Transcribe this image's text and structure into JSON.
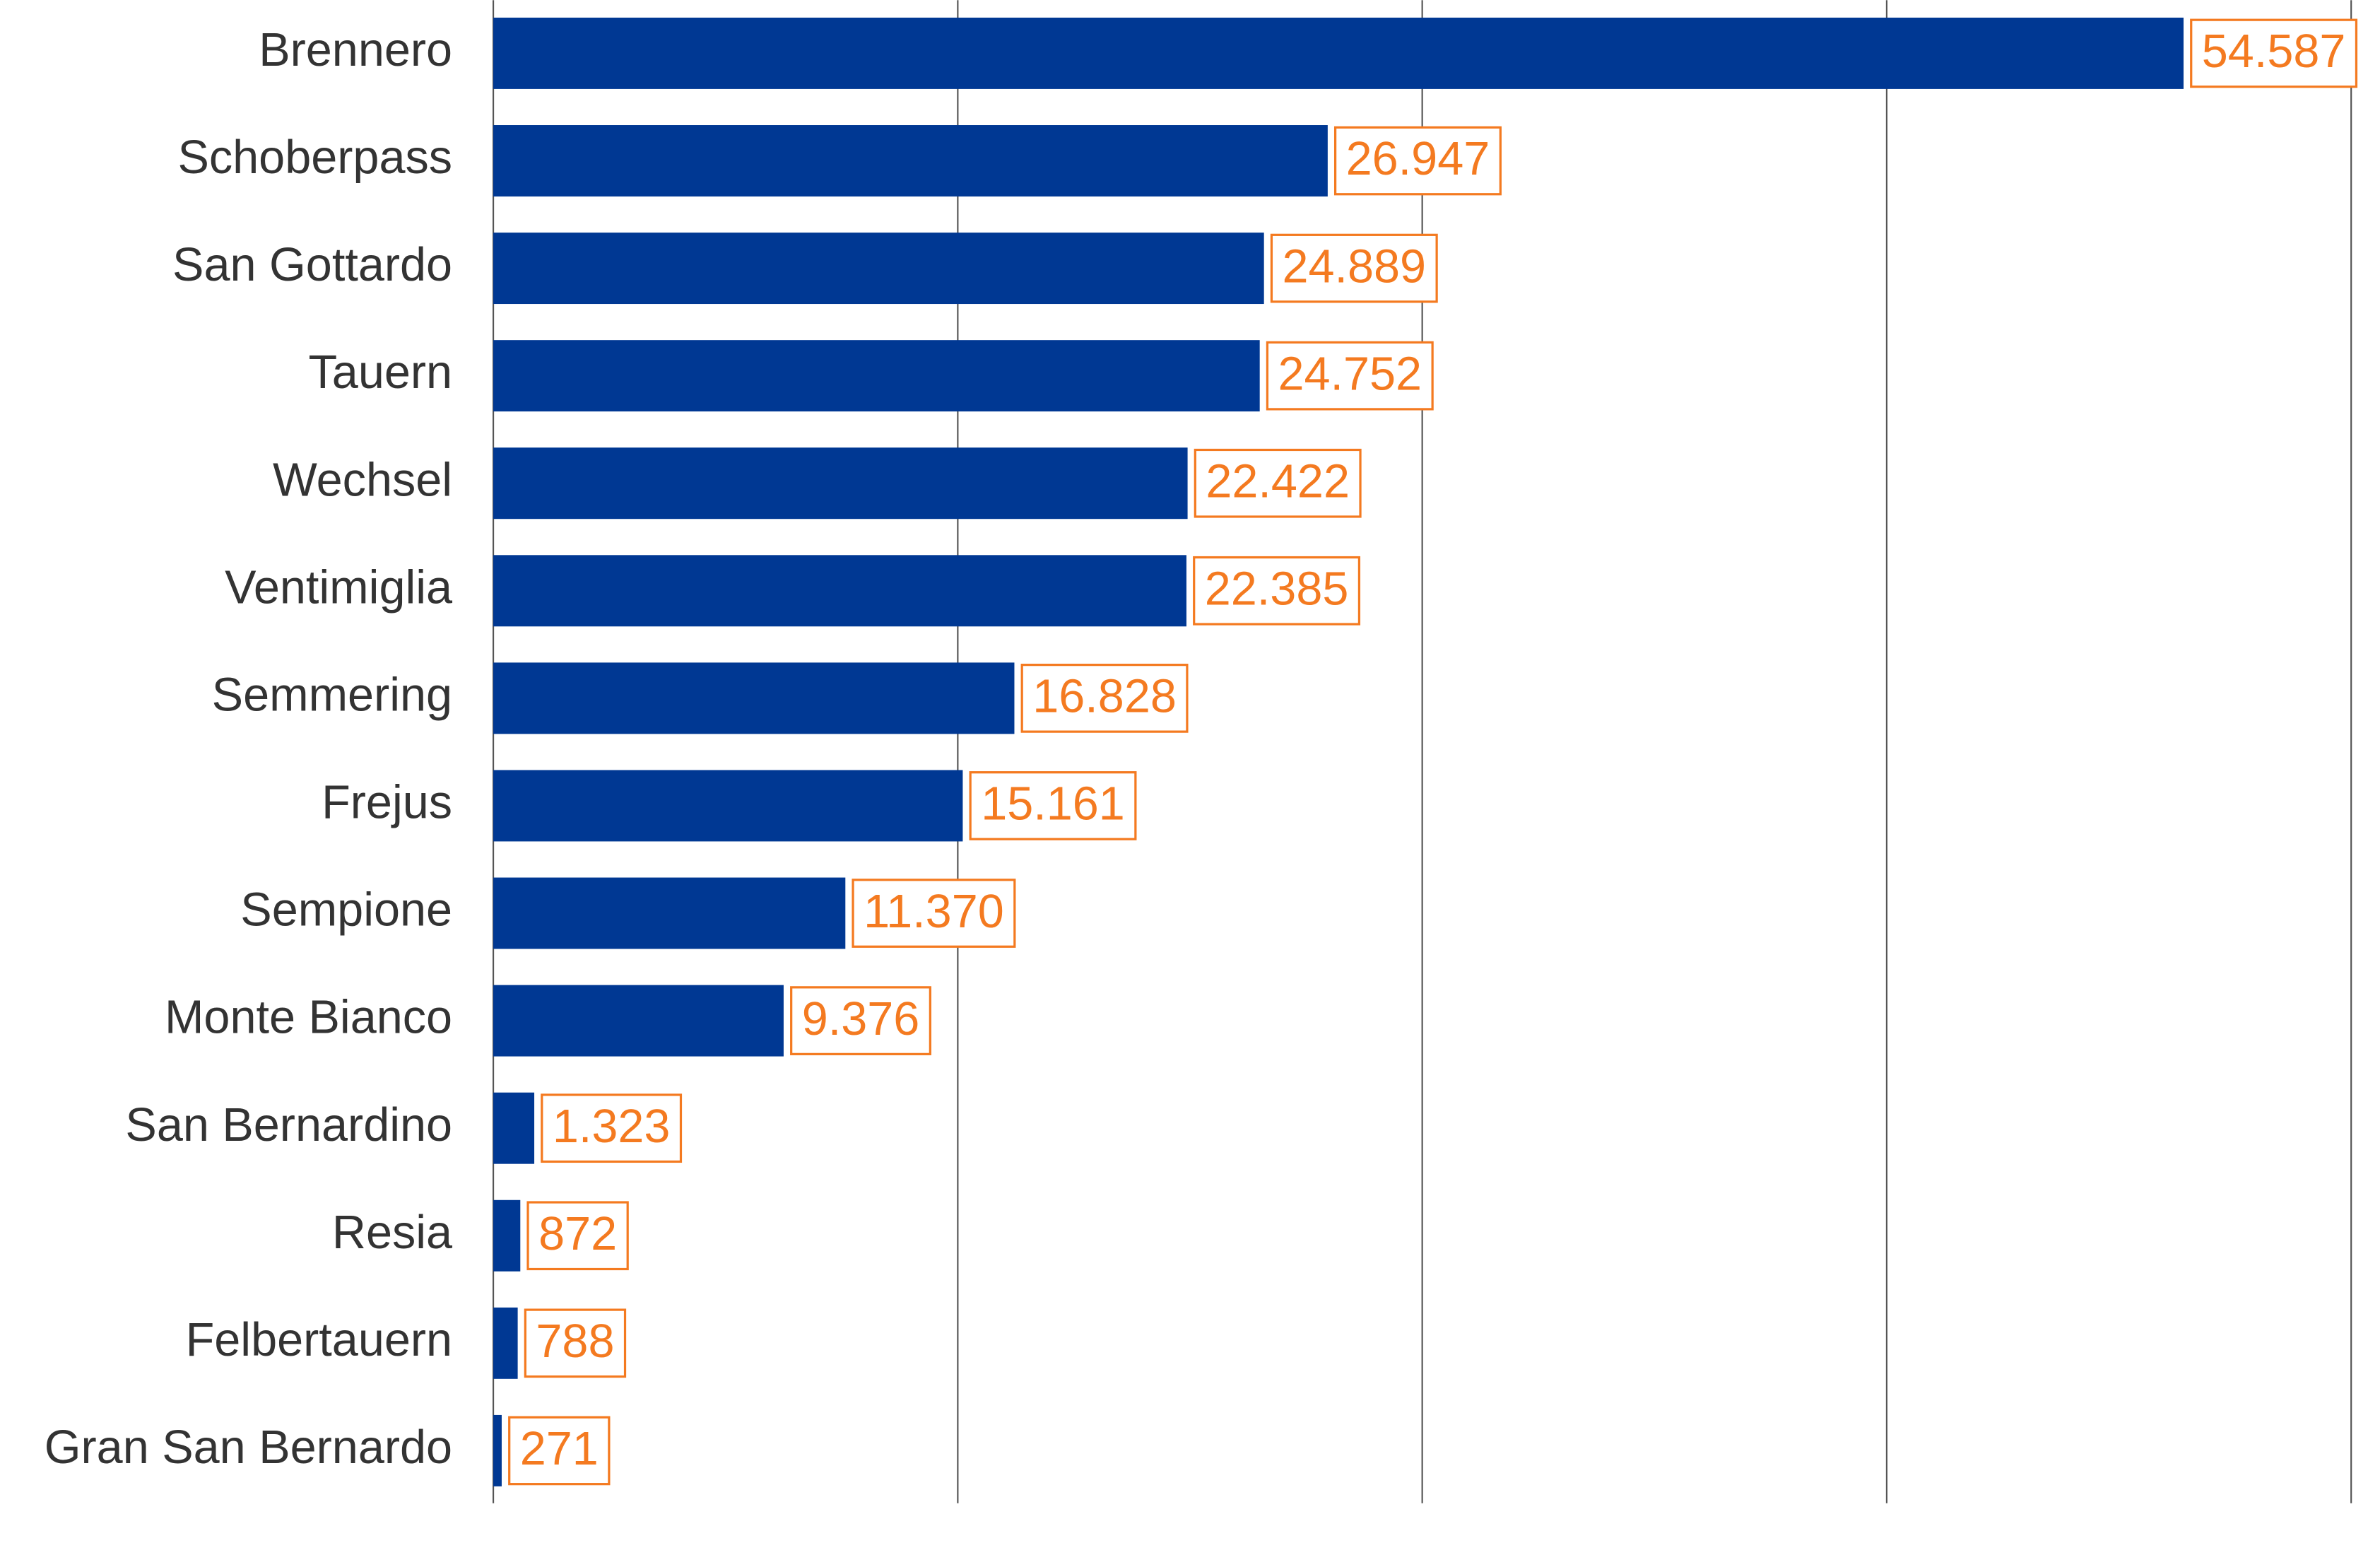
{
  "chart_data": {
    "type": "bar",
    "orientation": "horizontal",
    "categories": [
      "Brennero",
      "Schoberpass",
      "San Gottardo",
      "Tauern",
      "Wechsel",
      "Ventimiglia",
      "Semmering",
      "Frejus",
      "Sempione",
      "Monte Bianco",
      "San Bernardino",
      "Resia",
      "Felbertauern",
      "Gran San Bernardo"
    ],
    "values": [
      54587,
      26947,
      24889,
      24752,
      22422,
      22385,
      16828,
      15161,
      11370,
      9376,
      1323,
      872,
      788,
      271
    ],
    "value_labels": [
      "54.587",
      "26.947",
      "24.889",
      "24.752",
      "22.422",
      "22.385",
      "16.828",
      "15.161",
      "11.370",
      "9.376",
      "1.323",
      "872",
      "788",
      "271"
    ],
    "color": "#003893",
    "label_color": "#f47a20",
    "xlim": [
      0,
      60000
    ],
    "xticks": [
      0,
      15000,
      30000,
      45000,
      60000
    ],
    "grid": true
  }
}
